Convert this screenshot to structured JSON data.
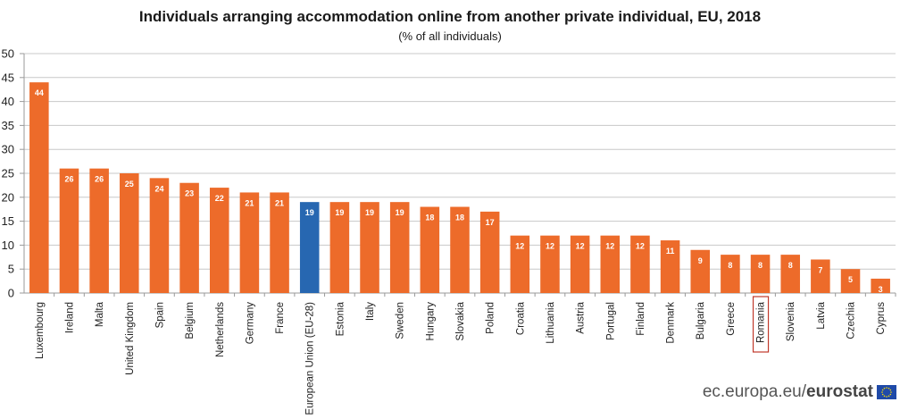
{
  "chart_data": {
    "type": "bar",
    "title": "Individuals arranging accommodation online from another private individual, EU, 2018",
    "subtitle": "(% of all individuals)",
    "xlabel": "",
    "ylabel": "",
    "ylim": [
      0,
      50
    ],
    "yticks": [
      0,
      5,
      10,
      15,
      20,
      25,
      30,
      35,
      40,
      45,
      50
    ],
    "grid": true,
    "legend": "none",
    "colors": {
      "bar": "#ed6b2a",
      "highlight": "#2767b1",
      "grid": "#c8c8c8",
      "label_box": "#c0392b"
    },
    "highlight_category": "European Union (EU-28)",
    "boxed_category": "Romania",
    "categories": [
      "Luxembourg",
      "Ireland",
      "Malta",
      "United Kingdom",
      "Spain",
      "Belgium",
      "Netherlands",
      "Germany",
      "France",
      "European Union (EU-28)",
      "Estonia",
      "Italy",
      "Sweden",
      "Hungary",
      "Slovakia",
      "Poland",
      "Croatia",
      "Lithuania",
      "Austria",
      "Portugal",
      "Finland",
      "Denmark",
      "Bulgaria",
      "Greece",
      "Romania",
      "Slovenia",
      "Latvia",
      "Czechia",
      "Cyprus"
    ],
    "values": [
      44,
      26,
      26,
      25,
      24,
      23,
      22,
      21,
      21,
      19,
      19,
      19,
      19,
      18,
      18,
      17,
      12,
      12,
      12,
      12,
      12,
      11,
      9,
      8,
      8,
      8,
      7,
      5,
      3
    ],
    "data_labels": [
      "44",
      "26",
      "26",
      "25",
      "24",
      "23",
      "22",
      "21",
      "21",
      "19",
      "19",
      "19",
      "19",
      "18",
      "18",
      "17",
      "12",
      "12",
      "12",
      "12",
      "12",
      "11",
      "9",
      "8",
      "8",
      "8",
      "7",
      "5",
      "3"
    ]
  },
  "footer": {
    "source_domain": "ec.europa.eu/",
    "source_brand": "eurostat",
    "flag_icon": "eu-flag-icon"
  }
}
